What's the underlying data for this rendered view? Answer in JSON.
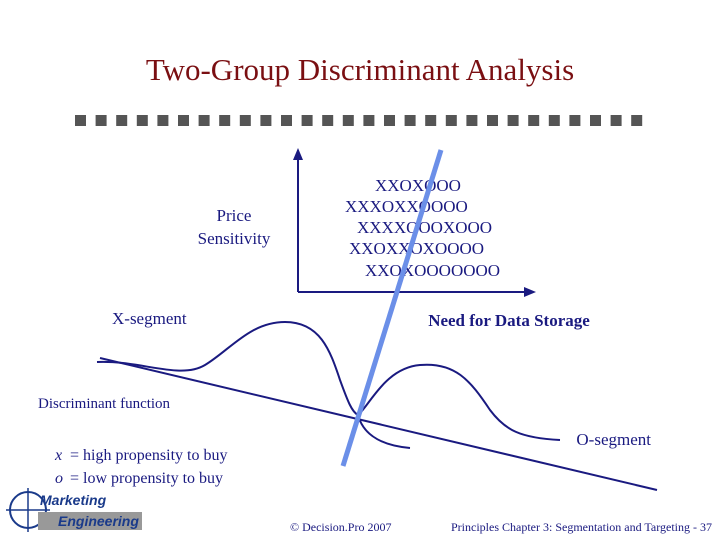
{
  "title": "Two-Group Discriminant Analysis",
  "y_axis_label": [
    "Price",
    "Sensitivity"
  ],
  "x_axis_label": "Need for Data Storage",
  "points_rows": [
    "XXOXOOO",
    "XXXOXXOOOO",
    "XXXXOOOXOOO",
    "XXOXXOXOOOO",
    "XXOXOOOOOOO"
  ],
  "x_segment": "X-segment",
  "o_segment": "O-segment",
  "discriminant_function": "Discriminant function",
  "legend": [
    {
      "symbol": "x",
      "text": "= high propensity to buy"
    },
    {
      "symbol": "o",
      "text": "= low propensity to buy"
    }
  ],
  "logo": [
    "Marketing",
    "Engineering"
  ],
  "footer": {
    "copyright": "© Decision.Pro 2007",
    "page": "Principles Chapter 3: Segmentation and Targeting - 37"
  }
}
